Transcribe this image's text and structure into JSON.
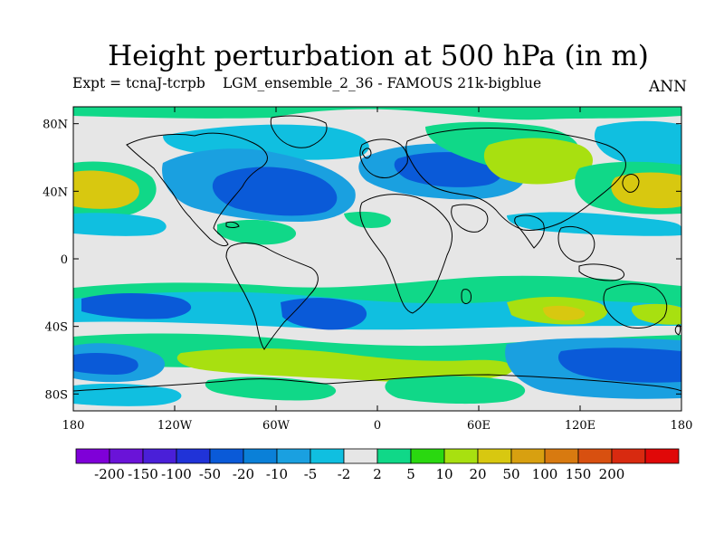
{
  "header": {
    "title": "Height perturbation at 500 hPa (in m)",
    "expt": "Expt = tcnaJ-tcrpb",
    "run": "LGM_ensemble_2_36 - FAMOUS 21k-bigblue",
    "period": "ANN"
  },
  "map": {
    "lat_ticks": [
      "80N",
      "40N",
      "0",
      "40S",
      "80S"
    ],
    "lon_ticks": [
      "180",
      "120W",
      "60W",
      "0",
      "60E",
      "120E",
      "180"
    ]
  },
  "colorbar": {
    "colors": [
      "#7f00d8",
      "#6a13d8",
      "#4a1fd8",
      "#2033d8",
      "#0a5ad8",
      "#0a80d8",
      "#1aa0e0",
      "#10bfe0",
      "#e6e6e6",
      "#10d888",
      "#2ad810",
      "#a8e010",
      "#d8c810",
      "#d8a010",
      "#d87a10",
      "#d85010",
      "#d82a10",
      "#e00808"
    ],
    "labels": [
      "-200",
      "-150",
      "-100",
      "-50",
      "-20",
      "-10",
      "-5",
      "-2",
      "2",
      "5",
      "10",
      "20",
      "50",
      "100",
      "150",
      "200"
    ]
  },
  "colors": {
    "neutral": "#e6e6e6",
    "coastline": "#000000"
  }
}
